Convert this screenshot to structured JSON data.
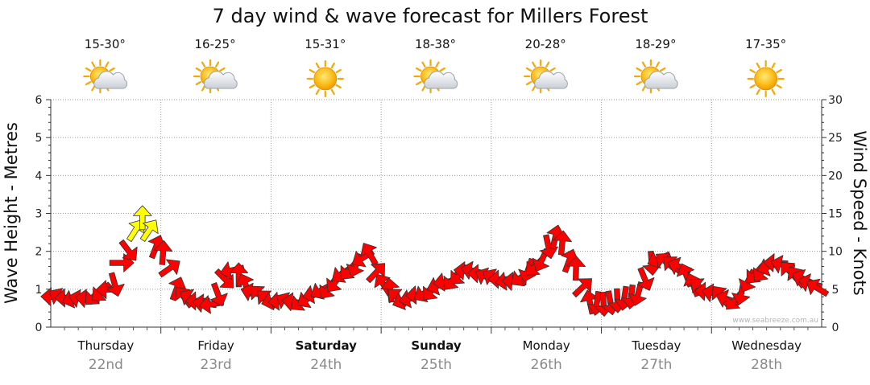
{
  "chart_data": {
    "type": "line",
    "title": "7 day wind & wave forecast for Millers Forest",
    "ylabel_left": "Wave Height - Metres",
    "ylabel_right": "Wind Speed - Knots",
    "ylim_left": [
      0,
      6
    ],
    "ylim_right": [
      0,
      30
    ],
    "yticks_left": [
      "0",
      "1",
      "2",
      "3",
      "4",
      "5",
      "6"
    ],
    "yticks_right": [
      "0",
      "5",
      "10",
      "15",
      "20",
      "25",
      "30"
    ],
    "days": [
      {
        "name": "Thursday",
        "date": "22nd",
        "temp": "15-30°",
        "weather_icon": "sun-cloud-icon",
        "bold": false
      },
      {
        "name": "Friday",
        "date": "23rd",
        "temp": "16-25°",
        "weather_icon": "sun-cloud-icon",
        "bold": false
      },
      {
        "name": "Saturday",
        "date": "24th",
        "temp": "15-31°",
        "weather_icon": "sun-icon",
        "bold": true
      },
      {
        "name": "Sunday",
        "date": "25th",
        "temp": "18-38°",
        "weather_icon": "sun-cloud-icon",
        "bold": true
      },
      {
        "name": "Monday",
        "date": "26th",
        "temp": "20-28°",
        "weather_icon": "sun-cloud-icon",
        "bold": false
      },
      {
        "name": "Tuesday",
        "date": "27th",
        "temp": "18-29°",
        "weather_icon": "sun-cloud-icon",
        "bold": false
      },
      {
        "name": "Wednesday",
        "date": "28th",
        "temp": "17-35°",
        "weather_icon": "sun-icon",
        "bold": false
      }
    ],
    "series": [
      {
        "x_days": [
          0,
          0.3,
          0.55,
          0.7,
          0.82,
          1.0,
          1.2,
          1.45,
          1.65,
          1.85,
          2.0,
          2.25,
          2.5,
          2.7,
          2.9,
          3.0,
          3.2,
          3.4,
          3.6,
          3.8,
          4.0,
          4.2,
          4.4,
          4.6,
          4.75,
          4.9,
          5.0,
          5.3,
          5.5,
          5.7,
          5.85,
          6.0,
          6.2,
          6.4,
          6.6,
          6.8,
          7.0
        ],
        "wind_knots": [
          4.0,
          3.7,
          5.0,
          10.0,
          14.5,
          10.0,
          4.0,
          3.0,
          7.5,
          4.5,
          3.5,
          3.3,
          5.0,
          7.5,
          9.7,
          5.7,
          3.5,
          4.5,
          6.0,
          7.5,
          6.5,
          6.0,
          8.0,
          12.0,
          8.0,
          3.3,
          3.0,
          4.0,
          9.0,
          8.0,
          5.5,
          4.5,
          3.5,
          7.0,
          8.5,
          6.5,
          5.0
        ],
        "colors": {
          "normal": "#ff0000",
          "strong": "#ffff00",
          "outline": "#333333"
        },
        "strong_threshold_knots": 12.5
      }
    ]
  },
  "watermark": "www.seabreeze.com.au"
}
